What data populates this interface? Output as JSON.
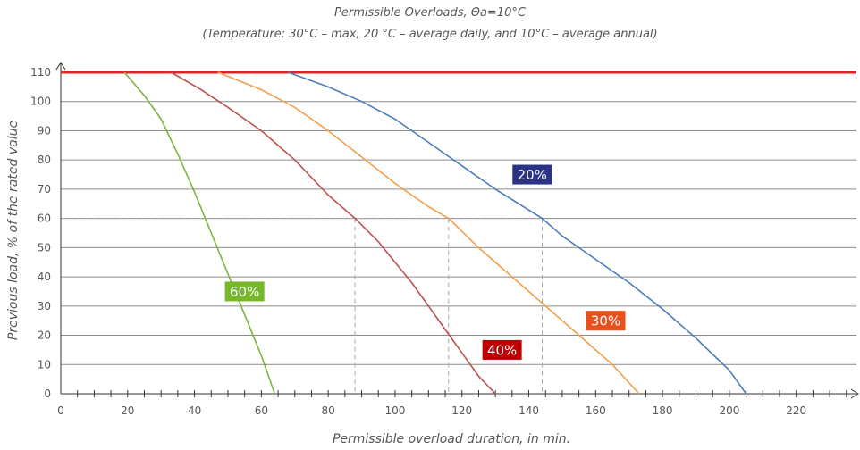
{
  "chart_data": {
    "type": "line",
    "title": "Permissible Overloads, Θa=10°C",
    "subtitle": "(Temperature: 30°C – max, 20 °C – average daily, and 10°C – average annual)",
    "xlabel": "Permissible overload duration, in min.",
    "ylabel": "Previous load, % of the rated value",
    "xlim": [
      0,
      238
    ],
    "ylim": [
      0,
      110
    ],
    "x_ticks": [
      0,
      20,
      40,
      60,
      80,
      100,
      120,
      140,
      160,
      180,
      200,
      220
    ],
    "y_ticks": [
      0,
      10,
      20,
      30,
      40,
      50,
      60,
      70,
      80,
      90,
      100,
      110
    ],
    "grid": true,
    "reference_line": {
      "y": 110,
      "color": "#d62728"
    },
    "guides": {
      "y": 60,
      "x": [
        88,
        116,
        144
      ]
    },
    "series": [
      {
        "name": "20%",
        "color": "#4a7ebb",
        "label_bg": "#2a3384",
        "label_at": [
          141,
          75
        ],
        "points": [
          [
            68,
            110
          ],
          [
            80,
            105
          ],
          [
            90,
            100
          ],
          [
            100,
            94
          ],
          [
            110,
            86
          ],
          [
            120,
            78
          ],
          [
            130,
            70
          ],
          [
            144,
            60
          ],
          [
            150,
            54
          ],
          [
            160,
            46
          ],
          [
            170,
            38
          ],
          [
            180,
            29
          ],
          [
            190,
            19
          ],
          [
            200,
            8
          ],
          [
            205,
            0
          ]
        ]
      },
      {
        "name": "30%",
        "color": "#f49e4c",
        "label_bg": "#e8501e",
        "label_at": [
          163,
          25
        ],
        "points": [
          [
            47,
            110
          ],
          [
            60,
            104
          ],
          [
            70,
            98
          ],
          [
            80,
            90
          ],
          [
            90,
            81
          ],
          [
            100,
            72
          ],
          [
            110,
            64
          ],
          [
            116,
            60
          ],
          [
            125,
            50
          ],
          [
            135,
            40
          ],
          [
            145,
            30
          ],
          [
            155,
            20
          ],
          [
            165,
            10
          ],
          [
            173,
            0
          ]
        ]
      },
      {
        "name": "40%",
        "color": "#c0504d",
        "label_bg": "#c00000",
        "label_at": [
          132,
          15
        ],
        "points": [
          [
            33,
            110
          ],
          [
            42,
            104
          ],
          [
            50,
            98
          ],
          [
            60,
            90
          ],
          [
            70,
            80
          ],
          [
            80,
            68
          ],
          [
            88,
            60
          ],
          [
            95,
            52
          ],
          [
            100,
            45
          ],
          [
            105,
            38
          ],
          [
            110,
            30
          ],
          [
            115,
            22
          ],
          [
            120,
            14
          ],
          [
            125,
            6
          ],
          [
            130,
            0
          ]
        ]
      },
      {
        "name": "60%",
        "color": "#7db340",
        "label_bg": "#76b82a",
        "label_at": [
          55,
          35
        ],
        "points": [
          [
            19,
            110
          ],
          [
            25,
            102
          ],
          [
            30,
            94
          ],
          [
            35,
            82
          ],
          [
            40,
            69
          ],
          [
            45,
            55
          ],
          [
            50,
            41
          ],
          [
            55,
            27
          ],
          [
            60,
            13
          ],
          [
            64,
            0
          ]
        ]
      }
    ]
  }
}
